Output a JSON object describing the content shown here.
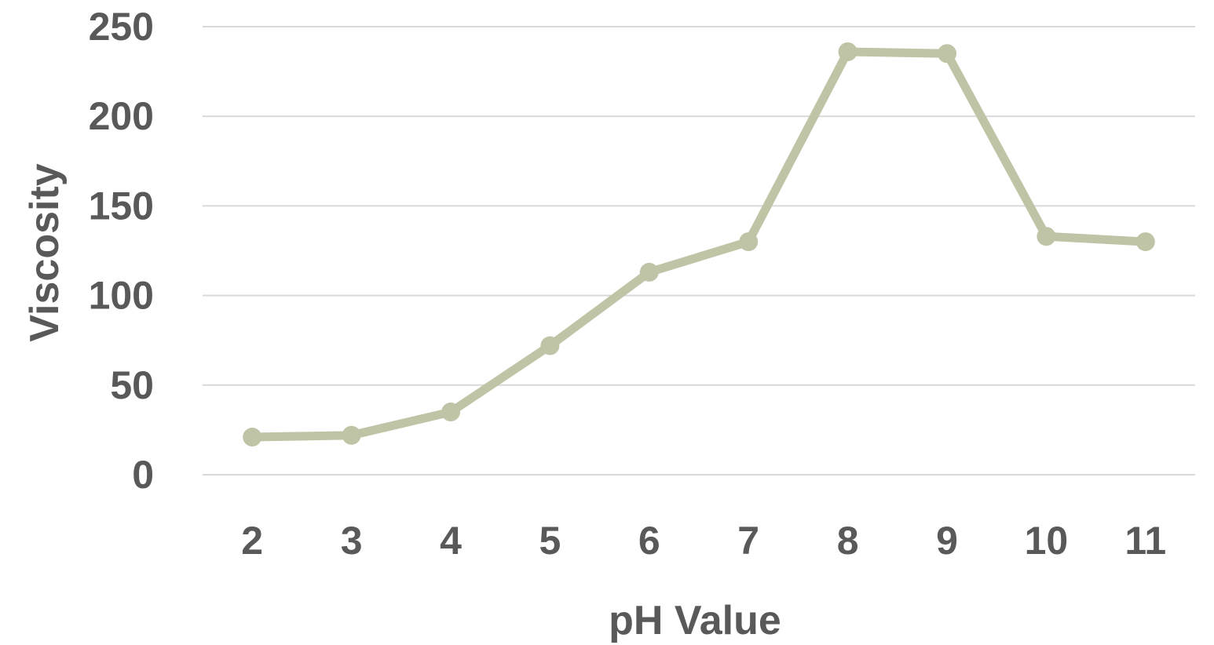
{
  "chart_data": {
    "type": "line",
    "title": "",
    "xlabel": "pH Value",
    "ylabel": "Viscosity",
    "categories": [
      "2",
      "3",
      "4",
      "5",
      "6",
      "7",
      "8",
      "9",
      "10",
      "11"
    ],
    "series": [
      {
        "values": [
          21,
          22,
          35,
          72,
          113,
          130,
          236,
          235,
          133,
          130
        ],
        "color": "#c0c4a6"
      }
    ],
    "ylim": [
      0,
      250
    ],
    "yticks": [
      "0",
      "50",
      "100",
      "150",
      "200",
      "250"
    ],
    "grid": true,
    "legend": "none"
  }
}
